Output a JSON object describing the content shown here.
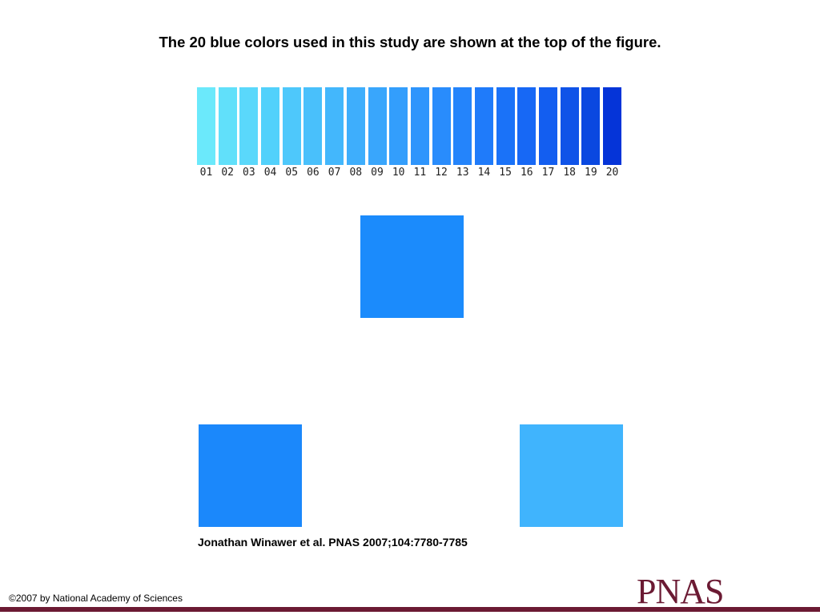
{
  "title": "The 20 blue colors used in this study are shown at the top of the figure.",
  "palette": {
    "labels": [
      "01",
      "02",
      "03",
      "04",
      "05",
      "06",
      "07",
      "08",
      "09",
      "10",
      "11",
      "12",
      "13",
      "14",
      "15",
      "16",
      "17",
      "18",
      "19",
      "20"
    ],
    "colors": [
      "#6be9fb",
      "#61e0fa",
      "#5ad8fb",
      "#52d1fb",
      "#4ec8fb",
      "#49c0fb",
      "#43b7fc",
      "#3eaefc",
      "#39a6fc",
      "#339efc",
      "#2e95fc",
      "#298cfc",
      "#2484fb",
      "#1f7bfa",
      "#1a72f8",
      "#1768f5",
      "#135ef0",
      "#0f53e8",
      "#0a48e0",
      "#0534d8"
    ]
  },
  "stimuli": {
    "top_color": "#1b8bfc",
    "left_color": "#1b88fb",
    "right_color": "#40b4fd"
  },
  "citation": "Jonathan Winawer et al. PNAS 2007;104:7780-7785",
  "copyright": "©2007 by National Academy of Sciences",
  "logo": {
    "text": "PNAS",
    "color": "#6b1a33"
  },
  "footer_bar_color": "#6b1a33"
}
